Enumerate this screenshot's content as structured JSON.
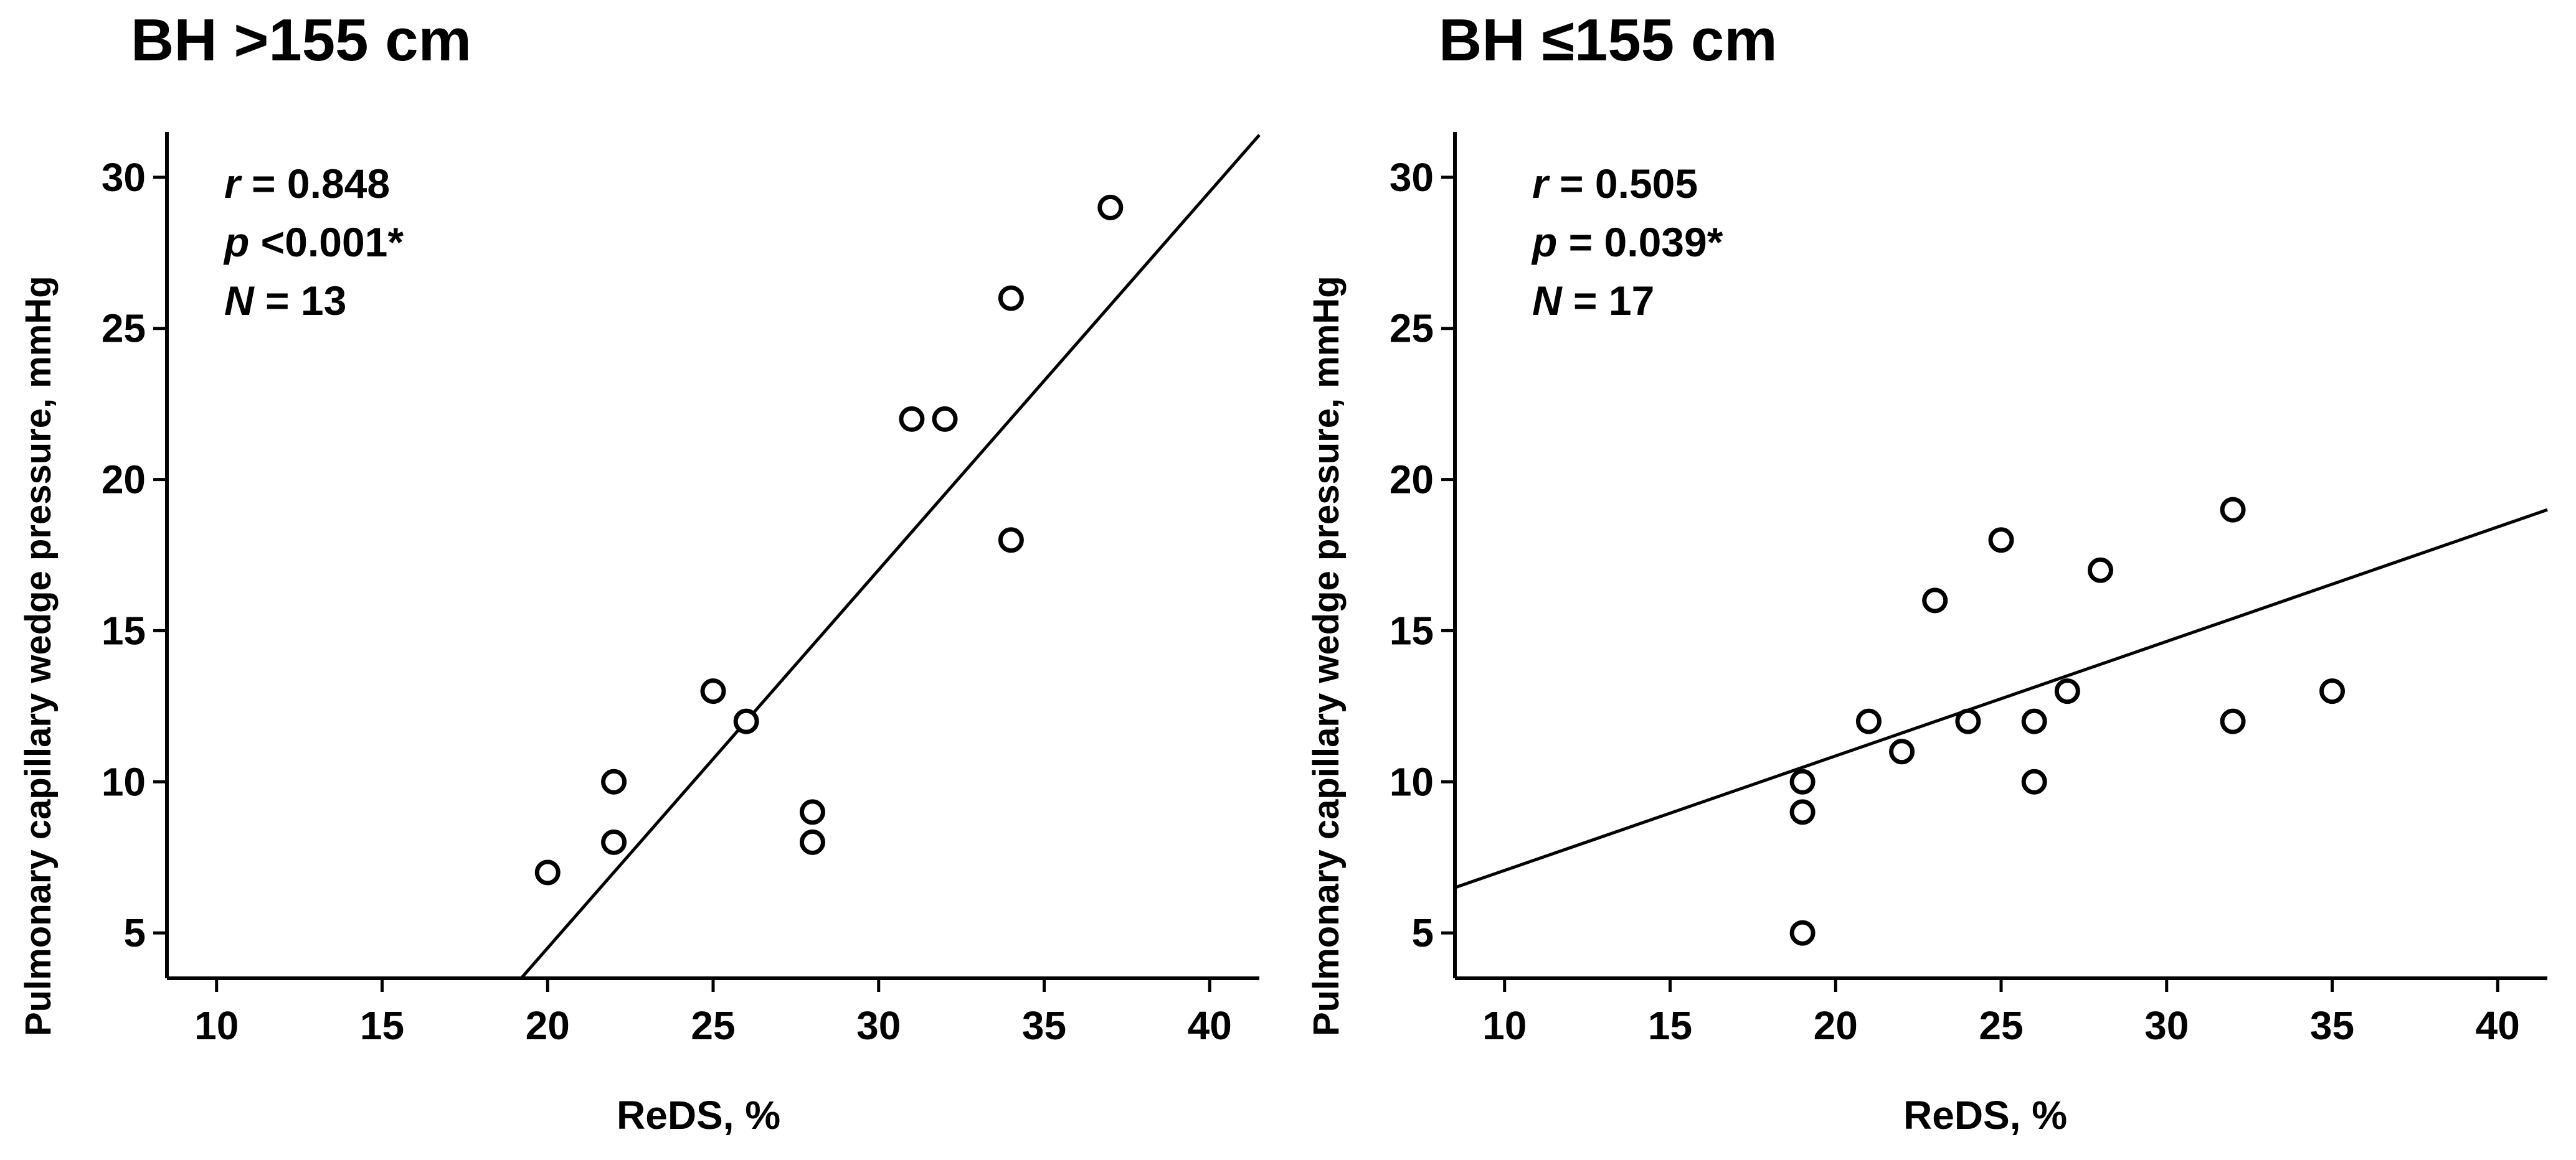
{
  "chart_data": [
    {
      "type": "scatter",
      "title": "BH >155 cm",
      "xlabel": "ReDS, %",
      "ylabel": "Pulmonary capillary  wedge pressure, mmHg",
      "xlim": [
        8.5,
        41.5
      ],
      "ylim": [
        3.5,
        31.5
      ],
      "xticks": [
        10,
        15,
        20,
        25,
        30,
        35,
        40
      ],
      "yticks": [
        5,
        10,
        15,
        20,
        25,
        30
      ],
      "stats": {
        "r_label": "r",
        "r_value": "= 0.848",
        "p_label": "p",
        "p_value": "<0.001*",
        "n_label": "N",
        "n_value": "= 13"
      },
      "points": [
        [
          20,
          7
        ],
        [
          22,
          8
        ],
        [
          22,
          10
        ],
        [
          25,
          13
        ],
        [
          26,
          12
        ],
        [
          28,
          8
        ],
        [
          28,
          9
        ],
        [
          31,
          22
        ],
        [
          32,
          22
        ],
        [
          34,
          18
        ],
        [
          34,
          26
        ],
        [
          37,
          29
        ]
      ],
      "fit_line": {
        "x": [
          19.2,
          41.5
        ],
        "y": [
          3.5,
          31.4
        ]
      },
      "grid": false
    },
    {
      "type": "scatter",
      "title": "BH ≤155 cm",
      "xlabel": "ReDS, %",
      "ylabel": "Pulmonary capillary  wedge pressure, mmHg",
      "xlim": [
        8.5,
        41.5
      ],
      "ylim": [
        3.5,
        31.5
      ],
      "xticks": [
        10,
        15,
        20,
        25,
        30,
        35,
        40
      ],
      "yticks": [
        5,
        10,
        15,
        20,
        25,
        30
      ],
      "stats": {
        "r_label": "r",
        "r_value": "= 0.505",
        "p_label": "p",
        "p_value": "= 0.039*",
        "n_label": "N",
        "n_value": "= 17"
      },
      "points": [
        [
          19,
          5
        ],
        [
          19,
          9
        ],
        [
          19,
          10
        ],
        [
          21,
          12
        ],
        [
          22,
          11
        ],
        [
          23,
          16
        ],
        [
          24,
          12
        ],
        [
          25,
          18
        ],
        [
          26,
          10
        ],
        [
          26,
          12
        ],
        [
          27,
          13
        ],
        [
          28,
          17
        ],
        [
          32,
          12
        ],
        [
          32,
          19
        ],
        [
          35,
          13
        ]
      ],
      "fit_line": {
        "x": [
          8.5,
          41.5
        ],
        "y": [
          6.5,
          19.0
        ]
      },
      "grid": false
    }
  ]
}
